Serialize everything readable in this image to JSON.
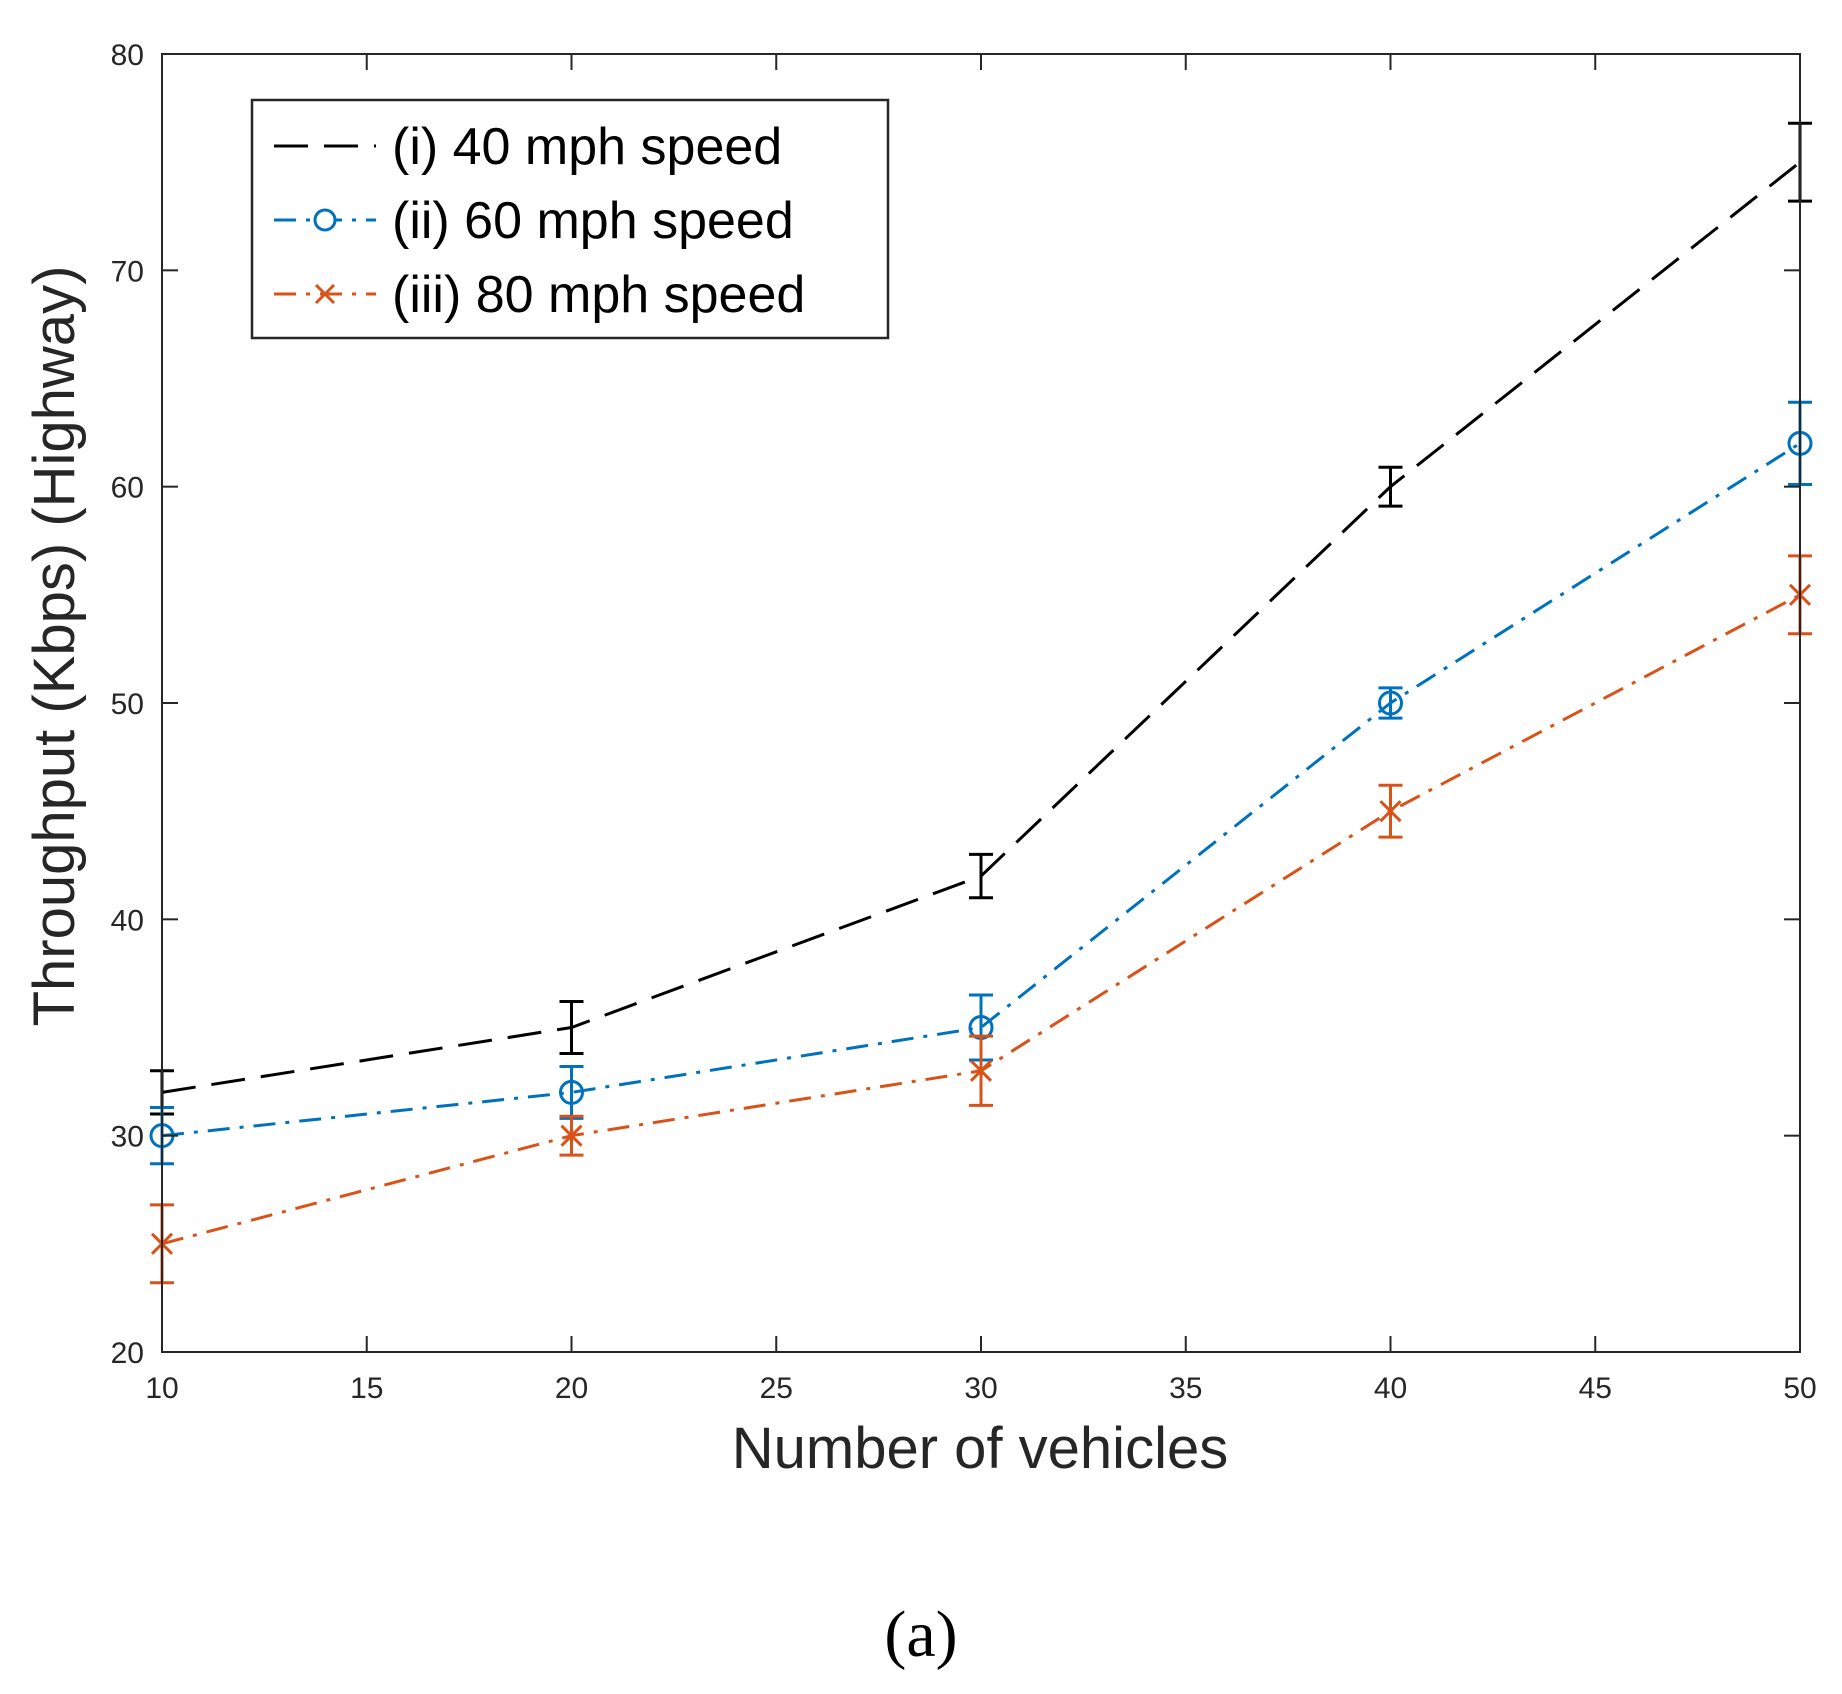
{
  "chart_data": {
    "type": "line",
    "xlabel": "Number of vehicles",
    "ylabel": "Throughput (Kbps) (Highway)",
    "xlim": [
      10,
      50
    ],
    "ylim": [
      20,
      80
    ],
    "xticks": [
      10,
      15,
      20,
      25,
      30,
      35,
      40,
      45,
      50
    ],
    "yticks": [
      20,
      30,
      40,
      50,
      60,
      70,
      80
    ],
    "grid": false,
    "legend_position": "top-left",
    "x": [
      10,
      20,
      30,
      40,
      50
    ],
    "series": [
      {
        "name": "(i) 40 mph speed",
        "color": "#000000",
        "line_style": "dashed",
        "marker": "none",
        "values": [
          32,
          35,
          42,
          60,
          75
        ],
        "error": [
          1.0,
          1.2,
          1.0,
          0.9,
          1.8
        ]
      },
      {
        "name": "(ii) 60 mph speed",
        "color": "#0072bd",
        "line_style": "dash-dot",
        "marker": "circle",
        "values": [
          30,
          32,
          35,
          50,
          62
        ],
        "error": [
          1.3,
          1.2,
          1.5,
          0.7,
          1.9
        ]
      },
      {
        "name": "(iii) 80 mph speed",
        "color": "#d95319",
        "line_style": "dash-dot",
        "marker": "x",
        "values": [
          25,
          30,
          33,
          45,
          55
        ],
        "error": [
          1.8,
          0.9,
          1.6,
          1.2,
          1.8
        ]
      }
    ]
  },
  "caption": "(a)"
}
